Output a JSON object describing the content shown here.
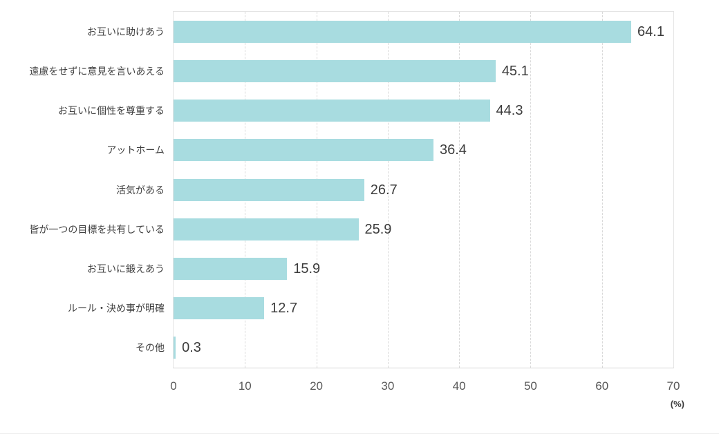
{
  "chart_data": {
    "type": "bar",
    "orientation": "horizontal",
    "title": "",
    "xlabel": "(%)",
    "ylabel": "",
    "categories": [
      "お互いに助けあう",
      "遠慮をせずに意見を言いあえる",
      "お互いに個性を尊重する",
      "アットホーム",
      "活気がある",
      "皆が一つの目標を共有している",
      "お互いに鍛えあう",
      "ルール・決め事が明確",
      "その他"
    ],
    "values": [
      64.1,
      45.1,
      44.3,
      36.4,
      26.7,
      25.9,
      15.9,
      12.7,
      0.3
    ],
    "value_labels": [
      "64.1",
      "45.1",
      "44.3",
      "36.4",
      "26.7",
      "25.9",
      "15.9",
      "12.7",
      "0.3"
    ],
    "xlim": [
      0,
      70
    ],
    "xticks": [
      0,
      10,
      20,
      30,
      40,
      50,
      60,
      70
    ],
    "xtick_labels": [
      "0",
      "10",
      "20",
      "30",
      "40",
      "50",
      "60",
      "70"
    ],
    "grid": "vertical-dashed",
    "legend": "none",
    "colors": {
      "bar_fill": "#a8dce0",
      "category_text": "#3f3f3f",
      "value_text": "#3c3c3c",
      "tick_text": "#595959",
      "gridline": "#d9d9d9",
      "plot_border": "#e3e3e3"
    }
  }
}
